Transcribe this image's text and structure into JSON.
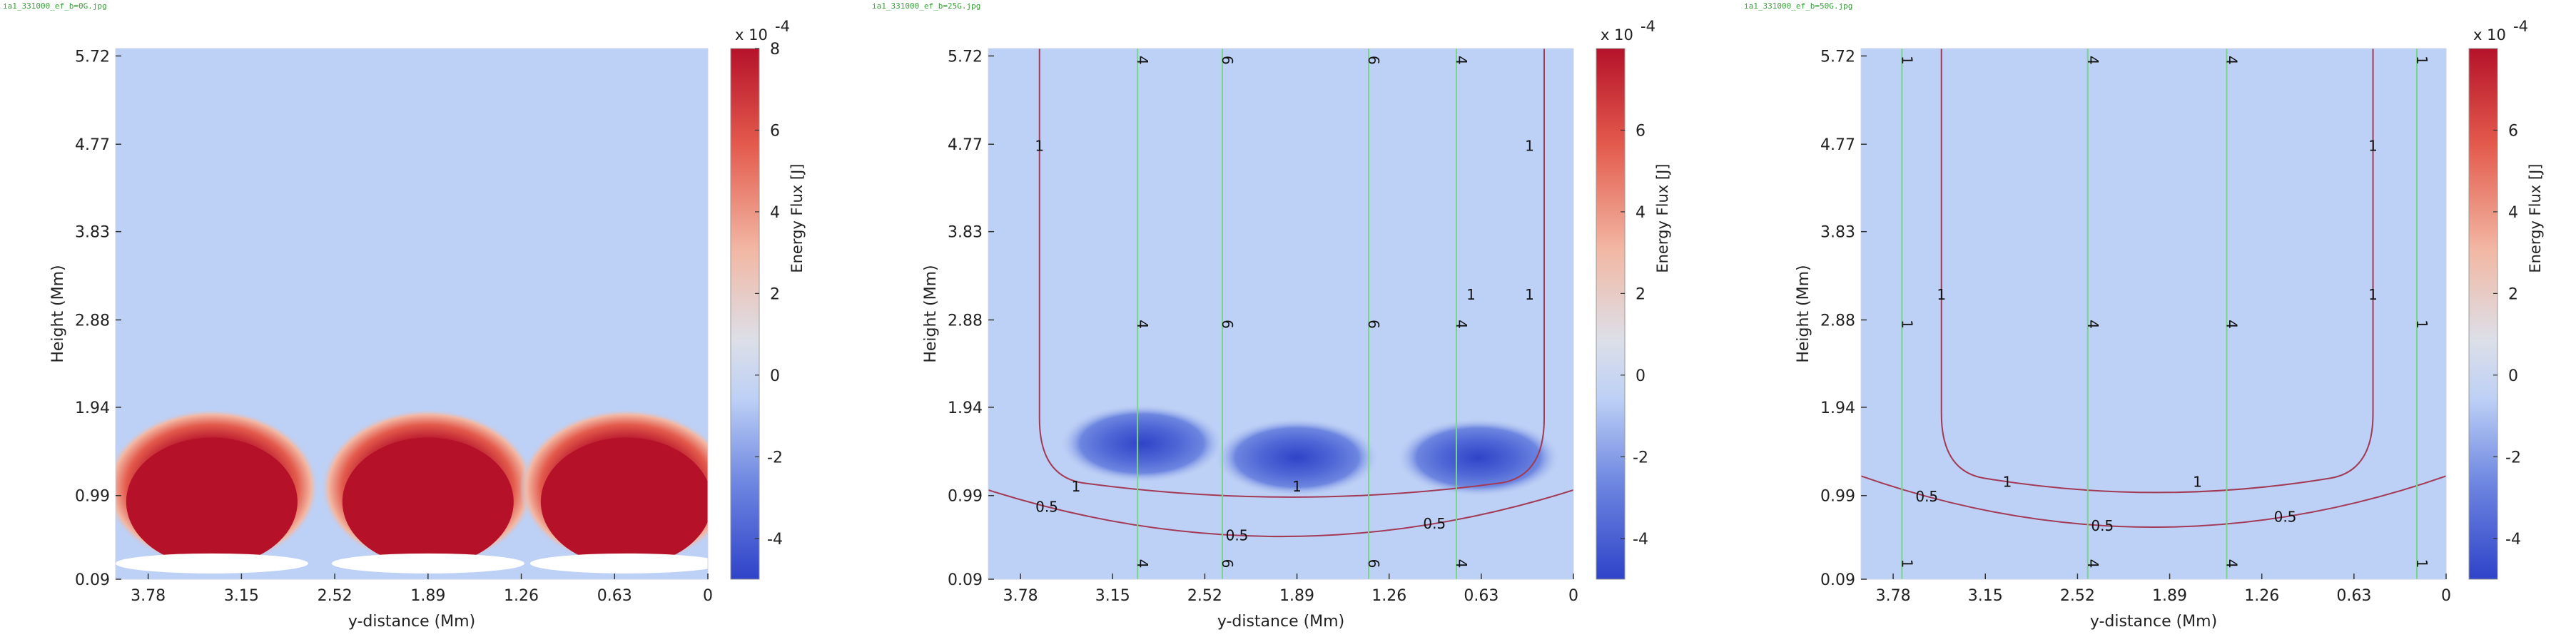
{
  "colors": {
    "background": "#bdd0f5",
    "hot": "#b5122a",
    "hot_mid": "#e35a4c",
    "hot_edge": "#f2b8a4",
    "cold": "#2f43c8",
    "cold_mid": "#6d86e0",
    "white": "#ffffff",
    "red_contour": "#a23a55",
    "green_contour": "#7ad48a"
  },
  "chart_data": [
    {
      "type": "heatmap",
      "file_caption": "ia1_331000_ef_b=0G.jpg",
      "xlabel": "y-distance (Mm)",
      "ylabel": "Height (Mm)",
      "x_ticks": [
        "3.78",
        "3.15",
        "2.52",
        "1.89",
        "1.26",
        "0.63",
        "0"
      ],
      "y_ticks": [
        "0.09",
        "0.99",
        "1.94",
        "2.88",
        "3.83",
        "4.77",
        "5.72"
      ],
      "xlim": [
        4.0,
        0
      ],
      "ylim": [
        0.09,
        5.8
      ],
      "colorbar": {
        "label": "Energy Flux [J]",
        "exponent": "x 10",
        "exponent_power": "-4",
        "ticks": [
          "8",
          "6",
          "4",
          "2",
          "0",
          "-2",
          "-4"
        ],
        "range": [
          -5,
          8
        ]
      },
      "hot_spots": [
        {
          "x": 3.35,
          "y": 1.0
        },
        {
          "x": 1.89,
          "y": 1.0
        },
        {
          "x": 0.55,
          "y": 1.0
        }
      ],
      "contours": []
    },
    {
      "type": "heatmap",
      "file_caption": "ia1_331000_ef_b=25G.jpg",
      "xlabel": "y-distance (Mm)",
      "ylabel": "Height (Mm)",
      "x_ticks": [
        "3.78",
        "3.15",
        "2.52",
        "1.89",
        "1.26",
        "0.63",
        "0"
      ],
      "y_ticks": [
        "0.09",
        "0.99",
        "1.94",
        "2.88",
        "3.83",
        "4.77",
        "5.72"
      ],
      "xlim": [
        4.0,
        0
      ],
      "ylim": [
        0.09,
        5.8
      ],
      "colorbar": {
        "label": "Energy Flux [J]",
        "exponent": "x 10",
        "exponent_power": "-4",
        "ticks": [
          "6",
          "4",
          "2",
          "0",
          "-2",
          "-4"
        ],
        "range": [
          -5,
          8
        ]
      },
      "cold_spots": [
        {
          "x": 2.95,
          "y": 1.55
        },
        {
          "x": 1.89,
          "y": 1.4
        },
        {
          "x": 0.65,
          "y": 1.4
        }
      ],
      "contours": [
        {
          "label": "1",
          "kind": "u",
          "x_left": 3.65,
          "x_right": 0.2,
          "y_bottom": 1.05,
          "label_x": [
            3.4,
            1.89,
            0.7,
            3.65,
            0.3,
            0.3
          ]
        },
        {
          "label": "0.5",
          "kind": "arc",
          "x_left": 4.0,
          "x_right": 0,
          "y_bottom": 0.55,
          "y_edge": 1.05,
          "label_x": [
            3.6,
            2.3,
            0.95
          ]
        },
        {
          "label": "4",
          "kind": "vertical",
          "x": 2.98
        },
        {
          "label": "6",
          "kind": "vertical",
          "x": 2.4
        },
        {
          "label": "6",
          "kind": "vertical",
          "x": 1.4
        },
        {
          "label": "4",
          "kind": "vertical",
          "x": 0.8
        }
      ]
    },
    {
      "type": "heatmap",
      "file_caption": "ia1_331000_ef_b=50G.jpg",
      "xlabel": "y-distance (Mm)",
      "ylabel": "Height (Mm)",
      "x_ticks": [
        "3.78",
        "3.15",
        "2.52",
        "1.89",
        "1.26",
        "0.63",
        "0"
      ],
      "y_ticks": [
        "0.09",
        "0.99",
        "1.94",
        "2.88",
        "3.83",
        "4.77",
        "5.72"
      ],
      "xlim": [
        4.0,
        0
      ],
      "ylim": [
        0.09,
        5.8
      ],
      "colorbar": {
        "label": "Energy Flux [J]",
        "exponent": "x 10",
        "exponent_power": "-4",
        "ticks": [
          "6",
          "4",
          "2",
          "0",
          "-2",
          "-4"
        ],
        "range": [
          -5,
          8
        ]
      },
      "contours": [
        {
          "label": "1",
          "kind": "u",
          "x_left": 3.45,
          "x_right": 0.5,
          "y_bottom": 1.1,
          "label_x": [
            3.0,
            1.7,
            3.45,
            0.5,
            0.5
          ]
        },
        {
          "label": "0.5",
          "kind": "arc",
          "x_left": 4.0,
          "x_right": 0,
          "y_bottom": 0.65,
          "y_edge": 1.2,
          "label_x": [
            3.55,
            2.35,
            1.1
          ]
        },
        {
          "label": "1",
          "kind": "vertical",
          "x": 3.72
        },
        {
          "label": "4",
          "kind": "vertical",
          "x": 2.45
        },
        {
          "label": "4",
          "kind": "vertical",
          "x": 1.5
        },
        {
          "label": "1",
          "kind": "vertical",
          "x": 0.2
        }
      ]
    }
  ]
}
